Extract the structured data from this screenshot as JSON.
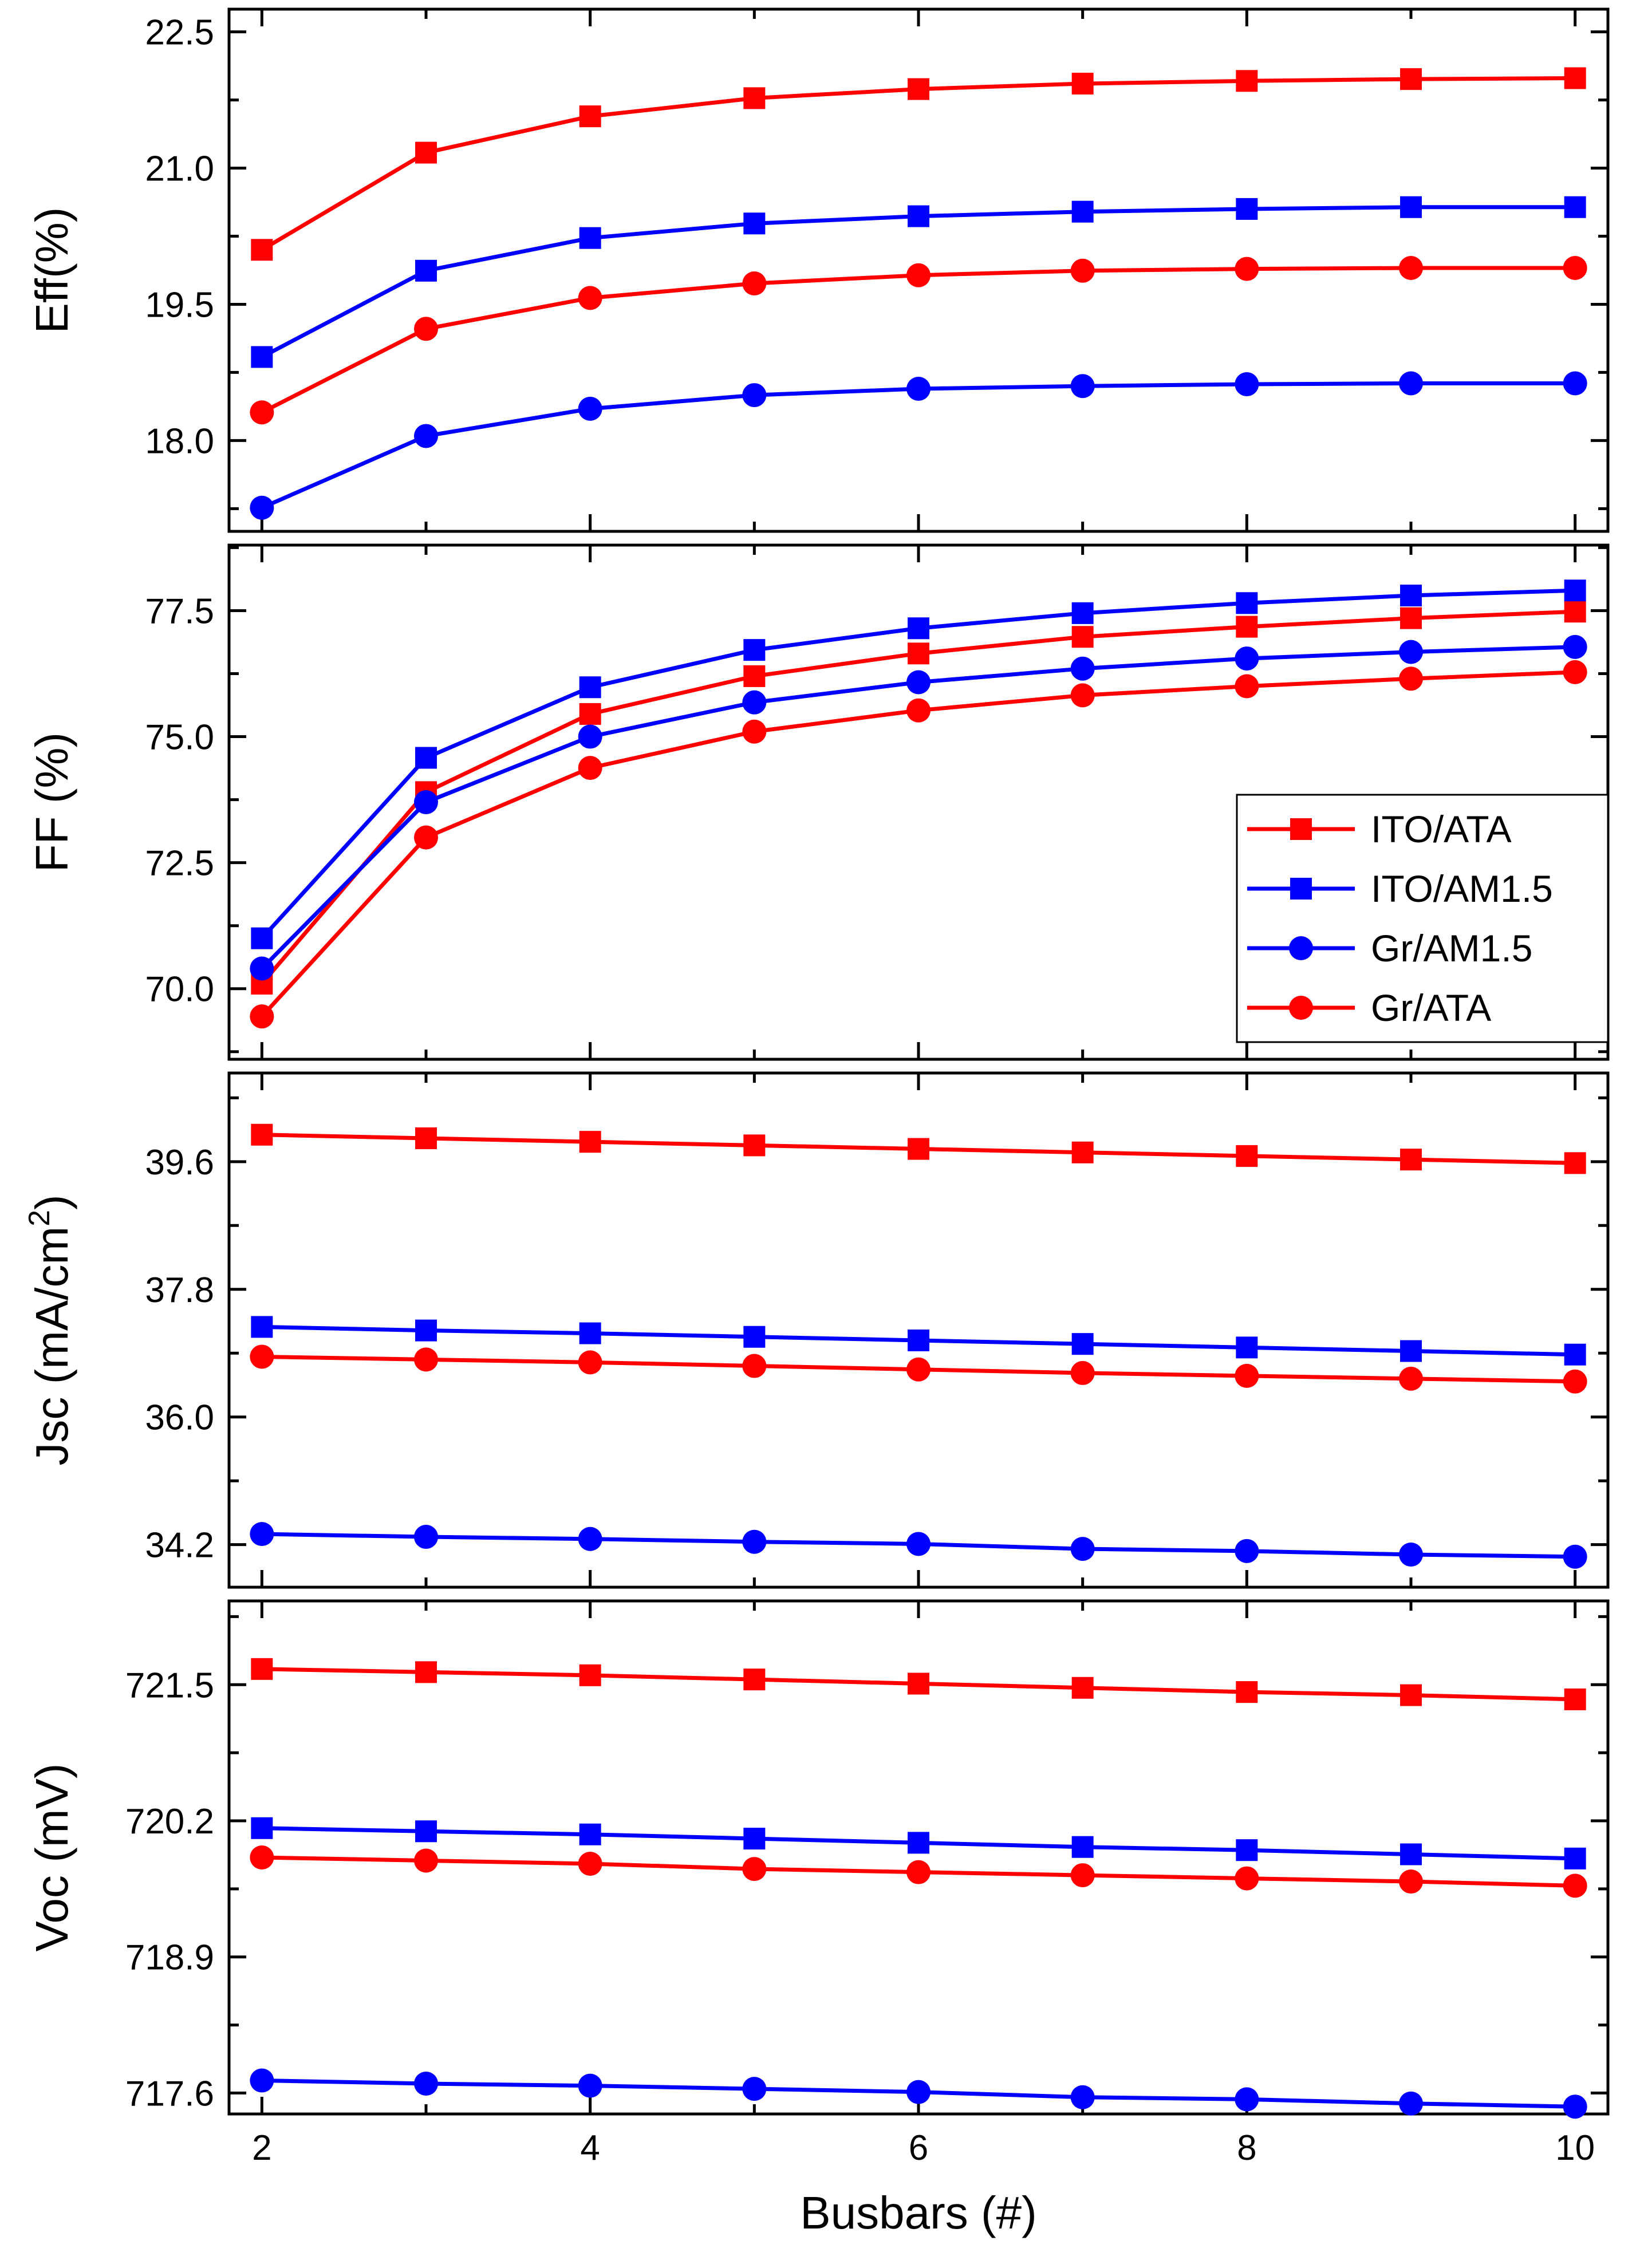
{
  "colors": {
    "red": "#ff0000",
    "blue": "#0000ff",
    "axis": "#000000",
    "background": "#ffffff"
  },
  "chart_data": [
    {
      "id": "eff",
      "type": "line",
      "ylabel": "Eff(%)",
      "ylim": [
        17.0,
        22.75
      ],
      "yticks": [
        18.0,
        19.5,
        21.0,
        22.5
      ],
      "ytick_labels": [
        "18.0",
        "19.5",
        "21.0",
        "22.5"
      ],
      "grid": false,
      "series": [
        {
          "name": "ITO/ATA",
          "marker": "square",
          "color": "#ff0000",
          "x": [
            2,
            3,
            4,
            5,
            6,
            7,
            8,
            9,
            10
          ],
          "values": [
            20.1,
            21.17,
            21.57,
            21.77,
            21.87,
            21.93,
            21.96,
            21.98,
            21.99
          ]
        },
        {
          "name": "ITO/AM1.5",
          "marker": "square",
          "color": "#0000ff",
          "x": [
            2,
            3,
            4,
            5,
            6,
            7,
            8,
            9,
            10
          ],
          "values": [
            18.92,
            19.87,
            20.23,
            20.39,
            20.47,
            20.52,
            20.55,
            20.57,
            20.57
          ]
        },
        {
          "name": "Gr/AM1.5",
          "marker": "circle",
          "color": "#0000ff",
          "x": [
            2,
            3,
            4,
            5,
            6,
            7,
            8,
            9,
            10
          ],
          "values": [
            17.26,
            18.05,
            18.35,
            18.5,
            18.57,
            18.6,
            18.62,
            18.63,
            18.63
          ]
        },
        {
          "name": "Gr/ATA",
          "marker": "circle",
          "color": "#ff0000",
          "x": [
            2,
            3,
            4,
            5,
            6,
            7,
            8,
            9,
            10
          ],
          "values": [
            18.31,
            19.23,
            19.57,
            19.73,
            19.82,
            19.87,
            19.89,
            19.9,
            19.9
          ]
        }
      ]
    },
    {
      "id": "ff",
      "type": "line",
      "ylabel": "FF (%)",
      "ylim": [
        68.6,
        78.8
      ],
      "yticks": [
        70.0,
        72.5,
        75.0,
        77.5
      ],
      "ytick_labels": [
        "70.0",
        "72.5",
        "75.0",
        "77.5"
      ],
      "grid": false,
      "legend": {
        "placement": "right",
        "entries": [
          {
            "label": "ITO/ATA",
            "marker": "square",
            "color": "#ff0000"
          },
          {
            "label": "ITO/AM1.5",
            "marker": "square",
            "color": "#0000ff"
          },
          {
            "label": "Gr/AM1.5",
            "marker": "circle",
            "color": "#0000ff"
          },
          {
            "label": "Gr/ATA",
            "marker": "circle",
            "color": "#ff0000"
          }
        ]
      },
      "series": [
        {
          "name": "ITO/ATA",
          "marker": "square",
          "color": "#ff0000",
          "x": [
            2,
            3,
            4,
            5,
            6,
            7,
            8,
            9,
            10
          ],
          "values": [
            70.1,
            73.9,
            75.45,
            76.2,
            76.65,
            76.98,
            77.18,
            77.35,
            77.48
          ]
        },
        {
          "name": "ITO/AM1.5",
          "marker": "square",
          "color": "#0000ff",
          "x": [
            2,
            3,
            4,
            5,
            6,
            7,
            8,
            9,
            10
          ],
          "values": [
            71.0,
            74.58,
            75.98,
            76.72,
            77.15,
            77.45,
            77.65,
            77.8,
            77.9
          ]
        },
        {
          "name": "Gr/AM1.5",
          "marker": "circle",
          "color": "#0000ff",
          "x": [
            2,
            3,
            4,
            5,
            6,
            7,
            8,
            9,
            10
          ],
          "values": [
            70.4,
            73.7,
            75.0,
            75.68,
            76.08,
            76.35,
            76.55,
            76.68,
            76.78
          ]
        },
        {
          "name": "Gr/ATA",
          "marker": "circle",
          "color": "#ff0000",
          "x": [
            2,
            3,
            4,
            5,
            6,
            7,
            8,
            9,
            10
          ],
          "values": [
            69.45,
            73.0,
            74.38,
            75.1,
            75.52,
            75.82,
            76.0,
            76.15,
            76.28
          ]
        }
      ]
    },
    {
      "id": "jsc",
      "type": "line",
      "ylabel_main": "Jsc (mA/cm",
      "ylabel_sup": "2",
      "ylabel_end": ")",
      "ylim": [
        33.6,
        40.85
      ],
      "yticks": [
        34.2,
        36.0,
        37.8,
        39.6
      ],
      "ytick_labels": [
        "34.2",
        "36.0",
        "37.8",
        "39.6"
      ],
      "grid": false,
      "series": [
        {
          "name": "ITO/ATA",
          "marker": "square",
          "color": "#ff0000",
          "x": [
            2,
            3,
            4,
            5,
            6,
            7,
            8,
            9,
            10
          ],
          "values": [
            39.98,
            39.93,
            39.88,
            39.83,
            39.78,
            39.73,
            39.68,
            39.63,
            39.58
          ]
        },
        {
          "name": "ITO/AM1.5",
          "marker": "square",
          "color": "#0000ff",
          "x": [
            2,
            3,
            4,
            5,
            6,
            7,
            8,
            9,
            10
          ],
          "values": [
            37.27,
            37.22,
            37.18,
            37.13,
            37.08,
            37.03,
            36.98,
            36.93,
            36.88
          ]
        },
        {
          "name": "Gr/AM1.5",
          "marker": "circle",
          "color": "#0000ff",
          "x": [
            2,
            3,
            4,
            5,
            6,
            7,
            8,
            9,
            10
          ],
          "values": [
            34.35,
            34.31,
            34.28,
            34.24,
            34.21,
            34.14,
            34.11,
            34.06,
            34.03
          ]
        },
        {
          "name": "Gr/ATA",
          "marker": "circle",
          "color": "#ff0000",
          "x": [
            2,
            3,
            4,
            5,
            6,
            7,
            8,
            9,
            10
          ],
          "values": [
            36.85,
            36.81,
            36.77,
            36.72,
            36.67,
            36.62,
            36.58,
            36.54,
            36.5
          ]
        }
      ]
    },
    {
      "id": "voc",
      "type": "line",
      "ylabel": "Voc (mV)",
      "xlabel": "Busbars (#)",
      "ylim": [
        717.4,
        722.3
      ],
      "yticks": [
        717.6,
        718.9,
        720.2,
        721.5
      ],
      "ytick_labels": [
        "717.6",
        "718.9",
        "720.2",
        "721.5"
      ],
      "xlim": [
        1.8,
        10.2
      ],
      "xticks": [
        2,
        4,
        6,
        8,
        10
      ],
      "xtick_labels": [
        "2",
        "4",
        "6",
        "8",
        "10"
      ],
      "grid": false,
      "series": [
        {
          "name": "ITO/ATA",
          "marker": "square",
          "color": "#ff0000",
          "x": [
            2,
            3,
            4,
            5,
            6,
            7,
            8,
            9,
            10
          ],
          "values": [
            721.65,
            721.62,
            721.59,
            721.55,
            721.51,
            721.47,
            721.43,
            721.4,
            721.36
          ]
        },
        {
          "name": "ITO/AM1.5",
          "marker": "square",
          "color": "#0000ff",
          "x": [
            2,
            3,
            4,
            5,
            6,
            7,
            8,
            9,
            10
          ],
          "values": [
            720.13,
            720.1,
            720.07,
            720.03,
            719.99,
            719.95,
            719.92,
            719.88,
            719.84
          ]
        },
        {
          "name": "Gr/AM1.5",
          "marker": "circle",
          "color": "#0000ff",
          "x": [
            2,
            3,
            4,
            5,
            6,
            7,
            8,
            9,
            10
          ],
          "values": [
            717.72,
            717.69,
            717.67,
            717.64,
            717.61,
            717.56,
            717.54,
            717.5,
            717.47
          ]
        },
        {
          "name": "Gr/ATA",
          "marker": "circle",
          "color": "#ff0000",
          "x": [
            2,
            3,
            4,
            5,
            6,
            7,
            8,
            9,
            10
          ],
          "values": [
            719.85,
            719.82,
            719.79,
            719.74,
            719.71,
            719.68,
            719.65,
            719.62,
            719.58
          ]
        }
      ]
    }
  ]
}
